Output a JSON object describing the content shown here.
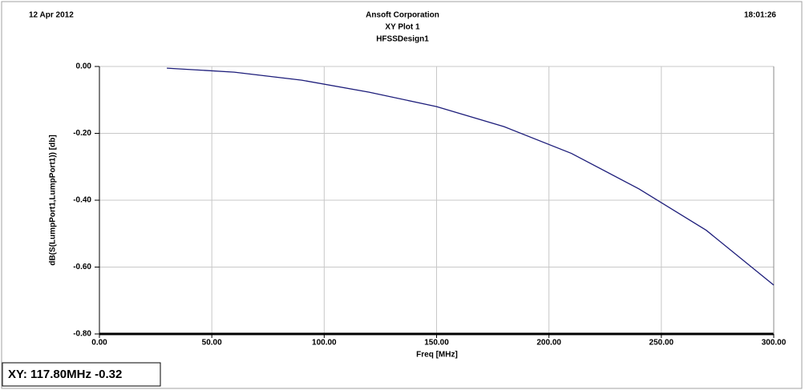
{
  "chart_data": {
    "type": "line",
    "header": {
      "date": "12 Apr 2012",
      "company": "Ansoft Corporation",
      "time": "18:01:26"
    },
    "title": "XY Plot 1",
    "subtitle": "HFSSDesign1",
    "xlabel": "Freq [MHz]",
    "ylabel": "dB(S(LumpPort1,LumpPort1)) [db]",
    "x": [
      30,
      60,
      90,
      120,
      150,
      180,
      210,
      240,
      270,
      300
    ],
    "series": [
      {
        "name": "dB(S(LumpPort1,LumpPort1))",
        "color": "#1c1c7a",
        "values": [
          -0.005,
          -0.017,
          -0.041,
          -0.077,
          -0.12,
          -0.18,
          -0.26,
          -0.366,
          -0.49,
          -0.654
        ]
      }
    ],
    "xlim": [
      0,
      300
    ],
    "xticks": [
      {
        "value": 0,
        "label": "0.00"
      },
      {
        "value": 50,
        "label": "50.00"
      },
      {
        "value": 100,
        "label": "100.00"
      },
      {
        "value": 150,
        "label": "150.00"
      },
      {
        "value": 200,
        "label": "200.00"
      },
      {
        "value": 250,
        "label": "250.00"
      },
      {
        "value": 300,
        "label": "300.00"
      }
    ],
    "ylim": [
      -0.8,
      0
    ],
    "yticks": [
      {
        "value": -0.8,
        "label": "-0.80"
      },
      {
        "value": -0.6,
        "label": "-0.60"
      },
      {
        "value": -0.4,
        "label": "-0.40"
      },
      {
        "value": -0.2,
        "label": "-0.20"
      },
      {
        "value": 0,
        "label": "0.00"
      }
    ],
    "grid": true,
    "marker_readout": "XY: 117.80MHz -0.32"
  }
}
